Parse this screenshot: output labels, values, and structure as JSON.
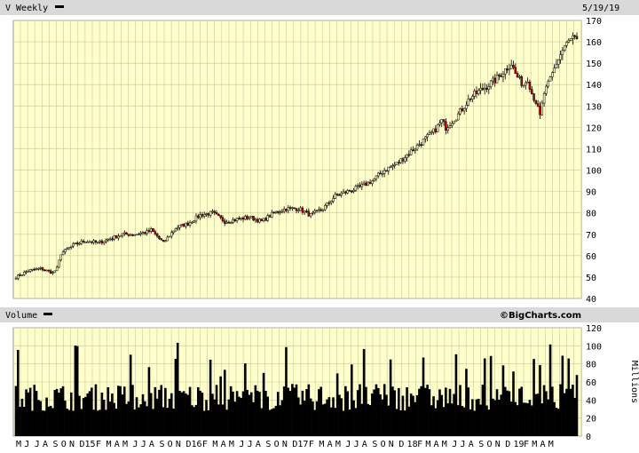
{
  "header": {
    "title": "V Weekly",
    "date": "5/19/19",
    "volume_title": "Volume",
    "watermark": "©BigCharts.com"
  },
  "colors": {
    "plot_bg": "#ffffcc",
    "grid": "#c8c8a0",
    "header_bg": "#d9d9d9",
    "up": "#000000",
    "down": "#cc0000",
    "volume": "#000000"
  },
  "chart_data": [
    {
      "type": "candlestick",
      "title": "V Weekly",
      "ylim": [
        40,
        170
      ],
      "yticks": [
        40,
        50,
        60,
        70,
        80,
        90,
        100,
        110,
        120,
        130,
        140,
        150,
        160,
        170
      ],
      "close_anchors": [
        [
          0,
          50
        ],
        [
          6,
          53
        ],
        [
          12,
          54
        ],
        [
          18,
          52
        ],
        [
          20,
          54
        ],
        [
          22,
          61
        ],
        [
          28,
          65
        ],
        [
          34,
          67
        ],
        [
          40,
          66
        ],
        [
          46,
          68
        ],
        [
          52,
          70
        ],
        [
          58,
          70
        ],
        [
          64,
          71
        ],
        [
          66,
          72
        ],
        [
          72,
          66
        ],
        [
          78,
          73
        ],
        [
          84,
          75
        ],
        [
          90,
          79
        ],
        [
          96,
          80
        ],
        [
          102,
          76
        ],
        [
          108,
          77
        ],
        [
          114,
          78
        ],
        [
          120,
          76
        ],
        [
          126,
          80
        ],
        [
          132,
          82
        ],
        [
          138,
          82
        ],
        [
          144,
          79
        ],
        [
          150,
          82
        ],
        [
          156,
          88
        ],
        [
          162,
          90
        ],
        [
          168,
          92
        ],
        [
          174,
          95
        ],
        [
          180,
          100
        ],
        [
          186,
          103
        ],
        [
          192,
          108
        ],
        [
          198,
          113
        ],
        [
          204,
          118
        ],
        [
          208,
          123
        ],
        [
          210,
          120
        ],
        [
          216,
          126
        ],
        [
          222,
          134
        ],
        [
          228,
          138
        ],
        [
          234,
          142
        ],
        [
          240,
          148
        ],
        [
          242,
          150
        ],
        [
          244,
          145
        ],
        [
          246,
          142
        ],
        [
          248,
          140
        ],
        [
          250,
          143
        ],
        [
          252,
          136
        ],
        [
          254,
          132
        ],
        [
          256,
          125
        ],
        [
          258,
          136
        ],
        [
          260,
          140
        ],
        [
          264,
          150
        ],
        [
          268,
          158
        ],
        [
          272,
          162
        ],
        [
          274,
          160
        ]
      ]
    },
    {
      "type": "bar",
      "title": "Volume",
      "ylabel": "Millions",
      "ylim": [
        0,
        120
      ],
      "yticks": [
        0,
        20,
        40,
        60,
        80,
        100,
        120
      ]
    }
  ],
  "x_labels": [
    {
      "label": "M",
      "week": 0
    },
    {
      "label": "J",
      "week": 4
    },
    {
      "label": "J",
      "week": 9
    },
    {
      "label": "A",
      "week": 13
    },
    {
      "label": "S",
      "week": 18
    },
    {
      "label": "O",
      "week": 22
    },
    {
      "label": "N",
      "week": 26
    },
    {
      "label": "D15",
      "week": 31
    },
    {
      "label": "F",
      "week": 39
    },
    {
      "label": "M",
      "week": 44
    },
    {
      "label": "A",
      "week": 48
    },
    {
      "label": "M",
      "week": 52
    },
    {
      "label": "J",
      "week": 57
    },
    {
      "label": "J",
      "week": 61
    },
    {
      "label": "A",
      "week": 65
    },
    {
      "label": "S",
      "week": 70
    },
    {
      "label": "O",
      "week": 74
    },
    {
      "label": "N",
      "week": 78
    },
    {
      "label": "D16",
      "week": 83
    },
    {
      "label": "F",
      "week": 91
    },
    {
      "label": "M",
      "week": 96
    },
    {
      "label": "A",
      "week": 100
    },
    {
      "label": "M",
      "week": 104
    },
    {
      "label": "J",
      "week": 109
    },
    {
      "label": "J",
      "week": 113
    },
    {
      "label": "A",
      "week": 117
    },
    {
      "label": "S",
      "week": 122
    },
    {
      "label": "O",
      "week": 126
    },
    {
      "label": "N",
      "week": 130
    },
    {
      "label": "D17",
      "week": 135
    },
    {
      "label": "F",
      "week": 143
    },
    {
      "label": "M",
      "week": 148
    },
    {
      "label": "A",
      "week": 152
    },
    {
      "label": "M",
      "week": 156
    },
    {
      "label": "J",
      "week": 161
    },
    {
      "label": "J",
      "week": 165
    },
    {
      "label": "A",
      "week": 169
    },
    {
      "label": "S",
      "week": 174
    },
    {
      "label": "O",
      "week": 178
    },
    {
      "label": "N",
      "week": 182
    },
    {
      "label": "D",
      "week": 187
    },
    {
      "label": "18",
      "week": 191
    },
    {
      "label": "F",
      "week": 196
    },
    {
      "label": "M",
      "week": 200
    },
    {
      "label": "A",
      "week": 204
    },
    {
      "label": "M",
      "week": 208
    },
    {
      "label": "J",
      "week": 213
    },
    {
      "label": "J",
      "week": 217
    },
    {
      "label": "A",
      "week": 221
    },
    {
      "label": "S",
      "week": 226
    },
    {
      "label": "O",
      "week": 230
    },
    {
      "label": "N",
      "week": 234
    },
    {
      "label": "D",
      "week": 239
    },
    {
      "label": "19",
      "week": 243
    },
    {
      "label": "F",
      "week": 248
    },
    {
      "label": "M",
      "week": 252
    },
    {
      "label": "A",
      "week": 256
    },
    {
      "label": "M",
      "week": 260
    }
  ]
}
